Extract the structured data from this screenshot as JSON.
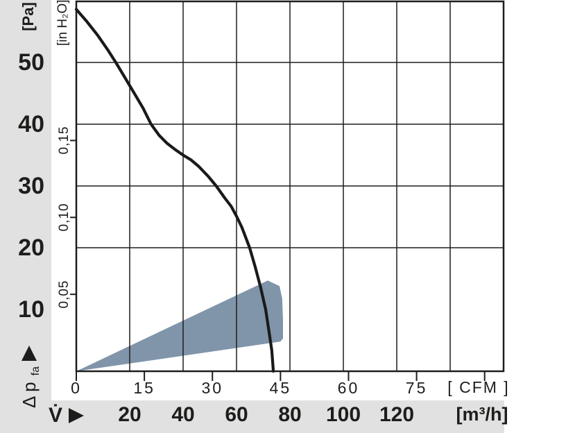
{
  "colors": {
    "background": "#ffffff",
    "band_gray": "#e1e1e1",
    "ink": "#1d1d1b",
    "curve": "#1a1a1a",
    "operating_range_fill": "#8095a9"
  },
  "chart_data": {
    "type": "line",
    "description": "Fan performance curve: static pressure drop vs volumetric air flow, with recommended operating range wedge",
    "x_axis": {
      "label": "V̇",
      "primary": {
        "unit_label": "[m³/h]",
        "tick_labels": [
          "20",
          "40",
          "60",
          "80",
          "100",
          "120"
        ],
        "tick_values_m3h": [
          20,
          40,
          60,
          80,
          100,
          120
        ],
        "range_m3h": [
          0,
          160
        ],
        "gridline_values_m3h": [
          20,
          40,
          60,
          80,
          100,
          120,
          140
        ]
      },
      "secondary": {
        "unit_label": "[ CFM ]",
        "tick_labels": [
          "0",
          "15",
          "30",
          "45",
          "60",
          "75"
        ],
        "tick_values_cfm": [
          0,
          15,
          30,
          45,
          60,
          75
        ],
        "tick_marks_cfm": [
          0,
          15,
          30,
          45,
          60,
          75,
          90
        ],
        "cfm_to_m3h": 1.699
      }
    },
    "y_axis": {
      "label": {
        "text": "Δ p",
        "sub": "fa"
      },
      "primary": {
        "unit_label": "[Pa]",
        "tick_labels": [
          "50",
          "40",
          "30",
          "20",
          "10"
        ],
        "tick_values_pa": [
          50,
          40,
          30,
          20,
          10
        ],
        "range_pa": [
          0,
          60
        ],
        "gridline_values_pa": [
          50,
          40,
          30,
          20
        ]
      },
      "secondary": {
        "unit_label": "[in H₂O]",
        "tick_labels": [
          "0,15",
          "0,10",
          "0,05"
        ],
        "tick_values_inh2o": [
          0.15,
          0.1,
          0.05
        ],
        "inh2o_to_pa": 249.09
      }
    },
    "grid": true,
    "legend": false,
    "series": [
      {
        "name": "fan-curve",
        "color": "#1a1a1a",
        "points_m3h_pa": [
          [
            0,
            58.6
          ],
          [
            4,
            56.6
          ],
          [
            8,
            54.4
          ],
          [
            12,
            51.9
          ],
          [
            14.8,
            50
          ],
          [
            18,
            47.7
          ],
          [
            22,
            44.8
          ],
          [
            25,
            42.6
          ],
          [
            28,
            40
          ],
          [
            31,
            38.2
          ],
          [
            34,
            36.9
          ],
          [
            37,
            35.9
          ],
          [
            40,
            35.0
          ],
          [
            43,
            34.2
          ],
          [
            46,
            33.1
          ],
          [
            49.5,
            31.5
          ],
          [
            52.4,
            30
          ],
          [
            55.5,
            28.1
          ],
          [
            58,
            26.7
          ],
          [
            60,
            25.1
          ],
          [
            62,
            23.3
          ],
          [
            64.9,
            20
          ],
          [
            67,
            16.9
          ],
          [
            69,
            13.6
          ],
          [
            70.9,
            10
          ],
          [
            72,
            6.9
          ],
          [
            73.2,
            3.4
          ],
          [
            73.8,
            0
          ]
        ]
      }
    ],
    "operating_range": {
      "name": "recommended-operating-range",
      "fill": "#8095a9",
      "polygon_m3h_pa": [
        [
          0,
          0
        ],
        [
          71.7,
          14.7
        ],
        [
          76.1,
          13.8
        ],
        [
          77.1,
          11.8
        ],
        [
          77.4,
          8.4
        ],
        [
          77.4,
          5.3
        ],
        [
          76.4,
          4.8
        ]
      ]
    }
  }
}
